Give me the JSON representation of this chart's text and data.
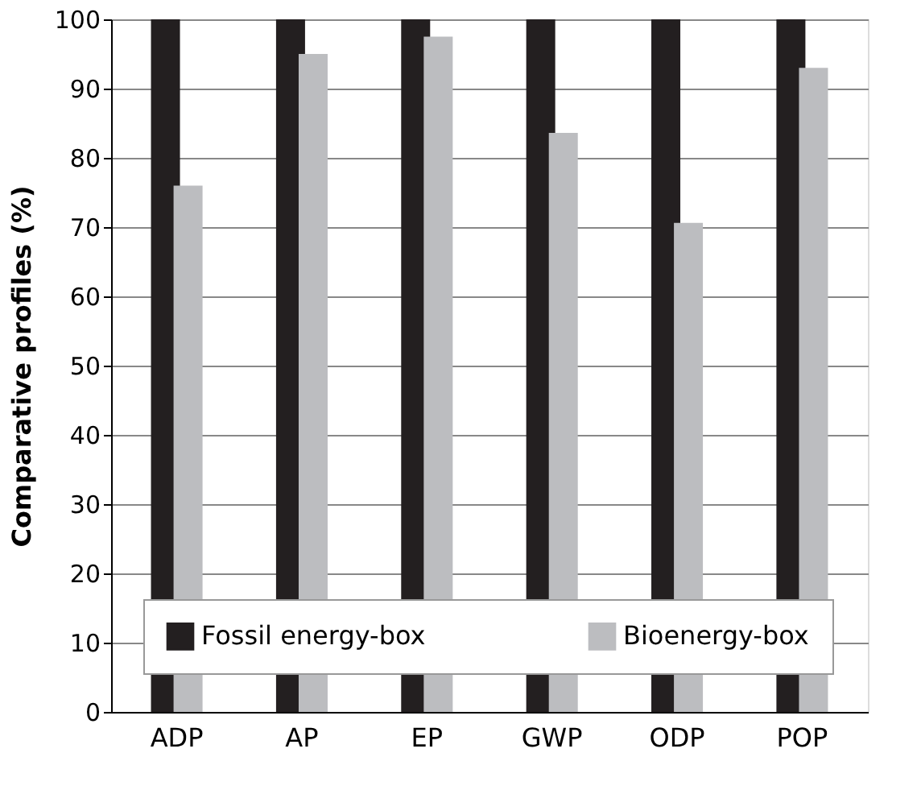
{
  "chart_data": {
    "type": "bar",
    "ylabel": "Comparative profiles (%)",
    "categories": [
      "ADP",
      "AP",
      "EP",
      "GWP",
      "ODP",
      "POP"
    ],
    "series": [
      {
        "name": "Fossil energy-box",
        "color": "#231f20",
        "values": [
          100,
          100,
          100,
          100,
          100,
          100
        ]
      },
      {
        "name": "Bioenergy-box",
        "color": "#bcbdc0",
        "values": [
          76,
          95,
          97.5,
          83.6,
          70.6,
          93
        ]
      }
    ],
    "ylim": [
      0,
      100
    ],
    "yticks": [
      0,
      10,
      20,
      30,
      40,
      50,
      60,
      70,
      80,
      90,
      100
    ],
    "grid": "y",
    "legend": "bottom"
  }
}
